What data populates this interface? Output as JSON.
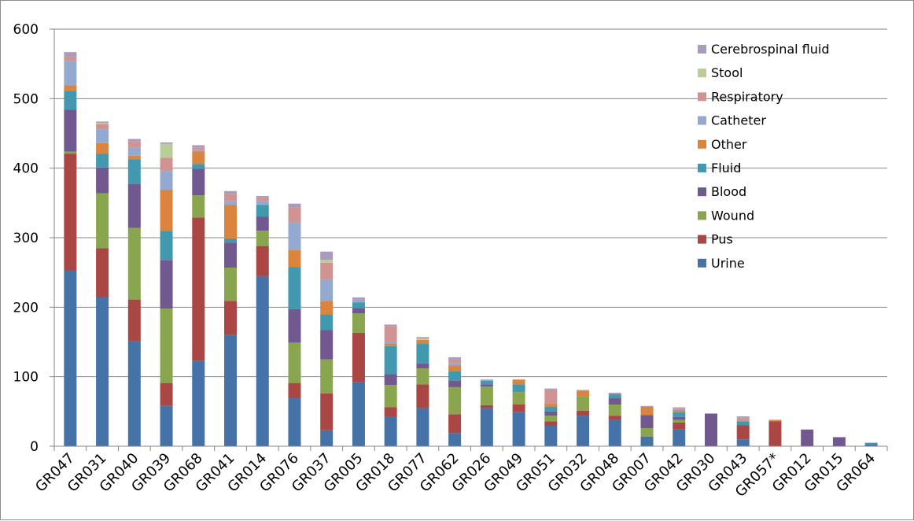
{
  "chart_data": {
    "type": "bar",
    "stacked": true,
    "title": "",
    "xlabel": "",
    "ylabel": "",
    "ylim": [
      0,
      600
    ],
    "yticks": [
      0,
      100,
      200,
      300,
      400,
      500,
      600
    ],
    "grid": "horizontal",
    "legend_position": "top-right",
    "categories": [
      "GR047",
      "GR031",
      "GR040",
      "GR039",
      "GR068",
      "GR041",
      "GR014",
      "GR076",
      "GR037",
      "GR005",
      "GR018",
      "GR077",
      "GR062",
      "GR026",
      "GR049",
      "GR051",
      "GR032",
      "GR048",
      "GR007",
      "GR042",
      "GR030",
      "GR043",
      "GR057*",
      "GR012",
      "GR015",
      "GR064"
    ],
    "series": [
      {
        "name": "Urine",
        "color": "#4572a7",
        "values": [
          253,
          214,
          151,
          58,
          123,
          160,
          245,
          69,
          23,
          92,
          43,
          55,
          19,
          55,
          49,
          30,
          44,
          38,
          14,
          24,
          0,
          10,
          0,
          0,
          0,
          3
        ]
      },
      {
        "name": "Pus",
        "color": "#aa4643",
        "values": [
          168,
          71,
          60,
          33,
          206,
          49,
          43,
          22,
          53,
          71,
          13,
          34,
          27,
          4,
          11,
          6,
          7,
          6,
          0,
          10,
          0,
          20,
          36,
          0,
          0,
          0
        ]
      },
      {
        "name": "Wound",
        "color": "#89a54e",
        "values": [
          3,
          79,
          103,
          107,
          32,
          48,
          22,
          58,
          49,
          28,
          32,
          23,
          39,
          27,
          18,
          8,
          21,
          16,
          12,
          4,
          0,
          0,
          0,
          0,
          0,
          0
        ]
      },
      {
        "name": "Blood",
        "color": "#71588f",
        "values": [
          60,
          37,
          63,
          70,
          38,
          36,
          20,
          48,
          42,
          8,
          16,
          7,
          9,
          3,
          0,
          6,
          0,
          9,
          19,
          4,
          47,
          0,
          0,
          24,
          13,
          0
        ]
      },
      {
        "name": "Fluid",
        "color": "#4198af",
        "values": [
          27,
          20,
          36,
          42,
          7,
          6,
          17,
          61,
          23,
          8,
          40,
          29,
          14,
          5,
          11,
          7,
          0,
          6,
          0,
          7,
          0,
          6,
          0,
          0,
          0,
          2
        ]
      },
      {
        "name": "Other",
        "color": "#db843d",
        "values": [
          8,
          15,
          5,
          59,
          18,
          48,
          0,
          24,
          19,
          0,
          4,
          5,
          8,
          0,
          7,
          4,
          8,
          0,
          12,
          3,
          0,
          0,
          2,
          0,
          0,
          0
        ]
      },
      {
        "name": "Catheter",
        "color": "#93a9cf",
        "values": [
          35,
          20,
          12,
          27,
          2,
          6,
          6,
          40,
          30,
          3,
          3,
          0,
          3,
          0,
          0,
          0,
          0,
          0,
          0,
          2,
          0,
          0,
          0,
          0,
          0,
          0
        ]
      },
      {
        "name": "Respiratory",
        "color": "#d19392",
        "values": [
          7,
          7,
          9,
          19,
          4,
          10,
          5,
          22,
          25,
          1,
          22,
          0,
          6,
          0,
          0,
          20,
          0,
          0,
          0,
          2,
          0,
          5,
          0,
          0,
          0,
          0
        ]
      },
      {
        "name": "Stool",
        "color": "#b9cd96",
        "values": [
          0,
          2,
          0,
          20,
          0,
          0,
          0,
          0,
          4,
          0,
          0,
          2,
          0,
          0,
          0,
          0,
          0,
          0,
          0,
          0,
          0,
          0,
          0,
          0,
          0,
          0
        ]
      },
      {
        "name": "Cerebrospinal fluid",
        "color": "#a99bbd",
        "values": [
          6,
          2,
          3,
          2,
          3,
          4,
          2,
          5,
          12,
          3,
          2,
          2,
          3,
          2,
          0,
          2,
          1,
          2,
          1,
          0,
          0,
          2,
          0,
          0,
          0,
          0
        ]
      }
    ]
  }
}
